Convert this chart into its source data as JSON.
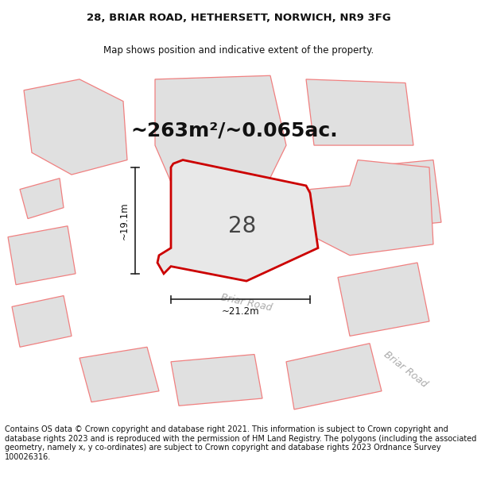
{
  "title_line1": "28, BRIAR ROAD, HETHERSETT, NORWICH, NR9 3FG",
  "title_line2": "Map shows position and indicative extent of the property.",
  "area_label": "~263m²/~0.065ac.",
  "plot_number": "28",
  "dim_height": "~19.1m",
  "dim_width": "~21.2m",
  "road_label1": "Briar Road",
  "road_label2": "Briar Road",
  "footer_text": "Contains OS data © Crown copyright and database right 2021. This information is subject to Crown copyright and database rights 2023 and is reproduced with the permission of HM Land Registry. The polygons (including the associated geometry, namely x, y co-ordinates) are subject to Crown copyright and database rights 2023 Ordnance Survey 100026316.",
  "bg_color": "#ffffff",
  "map_bg": "#ffffff",
  "plot_fill": "#e8e8e8",
  "plot_outline": "#cc0000",
  "neighbor_fill": "#e0e0e0",
  "neighbor_outline": "#f08080",
  "title_fontsize": 9.5,
  "subtitle_fontsize": 8.5,
  "footer_fontsize": 7.0,
  "area_fontsize": 18,
  "plot_num_fontsize": 20
}
